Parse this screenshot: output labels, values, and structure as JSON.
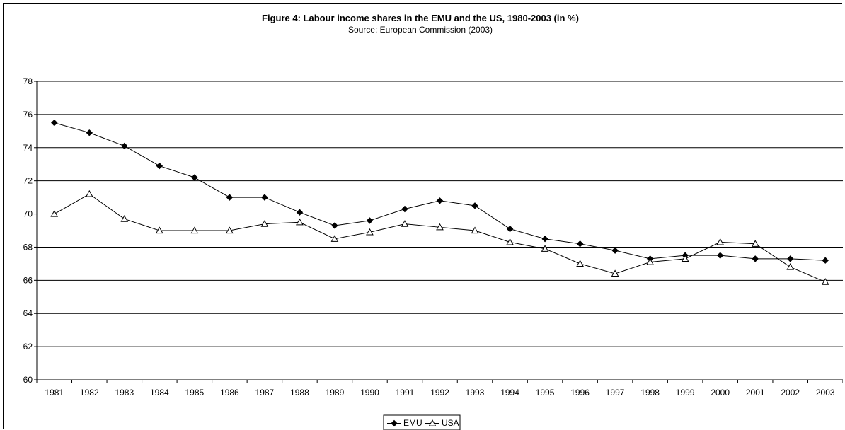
{
  "chart_data": {
    "type": "line",
    "title": "Figure 4: Labour income shares in the EMU and the US, 1980-2003 (in %)",
    "subtitle": "Source: European Commission (2003)",
    "xlabel": "",
    "ylabel": "",
    "categories": [
      "1981",
      "1982",
      "1983",
      "1984",
      "1985",
      "1986",
      "1987",
      "1988",
      "1989",
      "1990",
      "1991",
      "1992",
      "1993",
      "1994",
      "1995",
      "1996",
      "1997",
      "1998",
      "1999",
      "2000",
      "2001",
      "2002",
      "2003"
    ],
    "ylim": [
      60,
      78
    ],
    "yticks": [
      "60",
      "62",
      "64",
      "66",
      "68",
      "70",
      "72",
      "74",
      "76",
      "78"
    ],
    "grid": "horizontal",
    "legend_position": "bottom",
    "series": [
      {
        "name": "EMU",
        "marker": "filled-diamond",
        "color": "#000000",
        "values": [
          75.5,
          74.9,
          74.1,
          72.9,
          72.2,
          71.0,
          71.0,
          70.1,
          69.3,
          69.6,
          70.3,
          70.8,
          70.5,
          69.1,
          68.5,
          68.2,
          67.8,
          67.3,
          67.5,
          67.5,
          67.3,
          67.3,
          67.2
        ]
      },
      {
        "name": "USA",
        "marker": "open-triangle",
        "color": "#000000",
        "values": [
          70.0,
          71.2,
          69.7,
          69.0,
          69.0,
          69.0,
          69.4,
          69.5,
          68.5,
          68.9,
          69.4,
          69.2,
          69.0,
          68.3,
          67.9,
          67.0,
          66.4,
          67.1,
          67.3,
          68.3,
          68.2,
          66.8,
          65.9
        ]
      }
    ]
  }
}
